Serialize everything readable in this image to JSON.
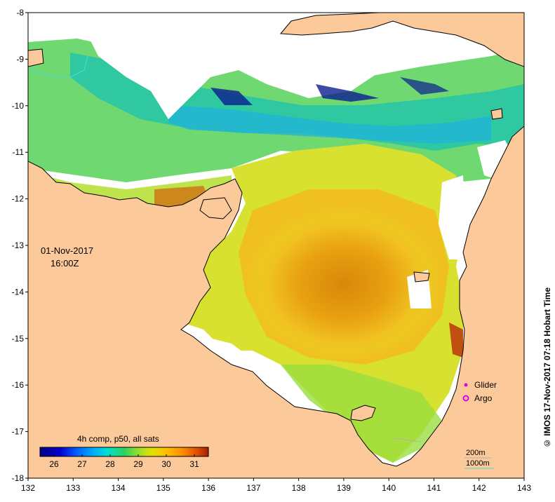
{
  "timestamp": {
    "date": "01-Nov-2017",
    "time": "16:00Z"
  },
  "credit": "© IMOS 17-Nov-2017 07:18 Hobart Time",
  "axes": {
    "x_ticks": [
      "132",
      "133",
      "134",
      "135",
      "136",
      "137",
      "138",
      "139",
      "140",
      "141",
      "142",
      "143"
    ],
    "y_ticks": [
      "-8",
      "-9",
      "-10",
      "-11",
      "-12",
      "-13",
      "-14",
      "-15",
      "-16",
      "-17",
      "-18"
    ],
    "xlim": [
      132,
      143
    ],
    "ylim": [
      -18,
      -8
    ]
  },
  "colorbar": {
    "title": "4h comp, p50, all sats",
    "ticks": [
      "26",
      "27",
      "28",
      "29",
      "30",
      "31"
    ],
    "range": [
      25.5,
      31.5
    ],
    "colors": [
      "#000080",
      "#0000d0",
      "#0060ff",
      "#00b0ff",
      "#00e0d0",
      "#30d060",
      "#90e030",
      "#e0e000",
      "#ffc000",
      "#ff9000",
      "#e05000",
      "#a02000"
    ]
  },
  "legend": {
    "items": [
      {
        "label": "Glider",
        "color": "#e000e0",
        "marker": "dot"
      },
      {
        "label": "Argo",
        "color": "#e000e0",
        "marker": "ring"
      }
    ]
  },
  "contours": {
    "items": [
      {
        "label": "200m",
        "color": "#b0b0b0"
      },
      {
        "label": "1000m",
        "color": "#40e0e0"
      }
    ]
  },
  "colors": {
    "land": "#fcc99a",
    "cloud": "#ffffff",
    "coast": "#000000"
  }
}
